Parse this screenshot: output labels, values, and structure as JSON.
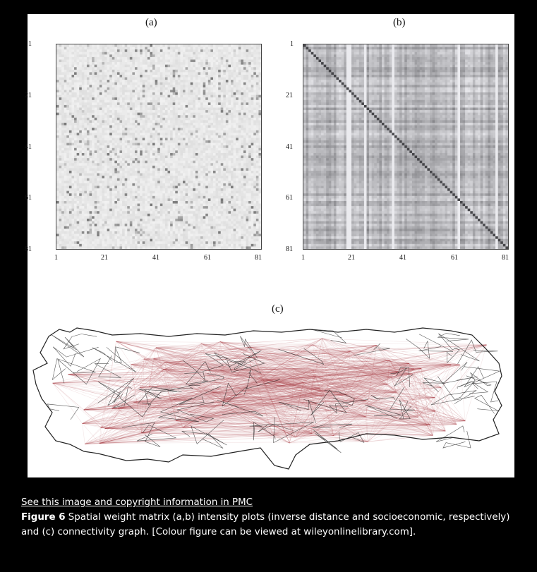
{
  "panels": [
    {
      "label": "(a)",
      "tick_labels": [
        "1",
        "21",
        "41",
        "61",
        "81"
      ],
      "style": "inverse distance",
      "base_gray": "#e4e4e4"
    },
    {
      "label": "(b)",
      "tick_labels": [
        "1",
        "21",
        "41",
        "61",
        "81"
      ],
      "style": "socioeconomic",
      "base_gray": "#a8acac"
    },
    {
      "label": "(c)"
    }
  ],
  "colors": {
    "edge": "#a83a45",
    "boundary": "#222222",
    "background": "#000000"
  },
  "caption": {
    "link_text": "See this image and copyright information in PMC",
    "figure_label": "Figure 6",
    "text": "  Spatial weight matrix (a,b) intensity plots (inverse distance and socioeconomic, respectively) and (c) connectivity graph. [Colour figure can be viewed at wileyonlinelibrary.com]."
  }
}
